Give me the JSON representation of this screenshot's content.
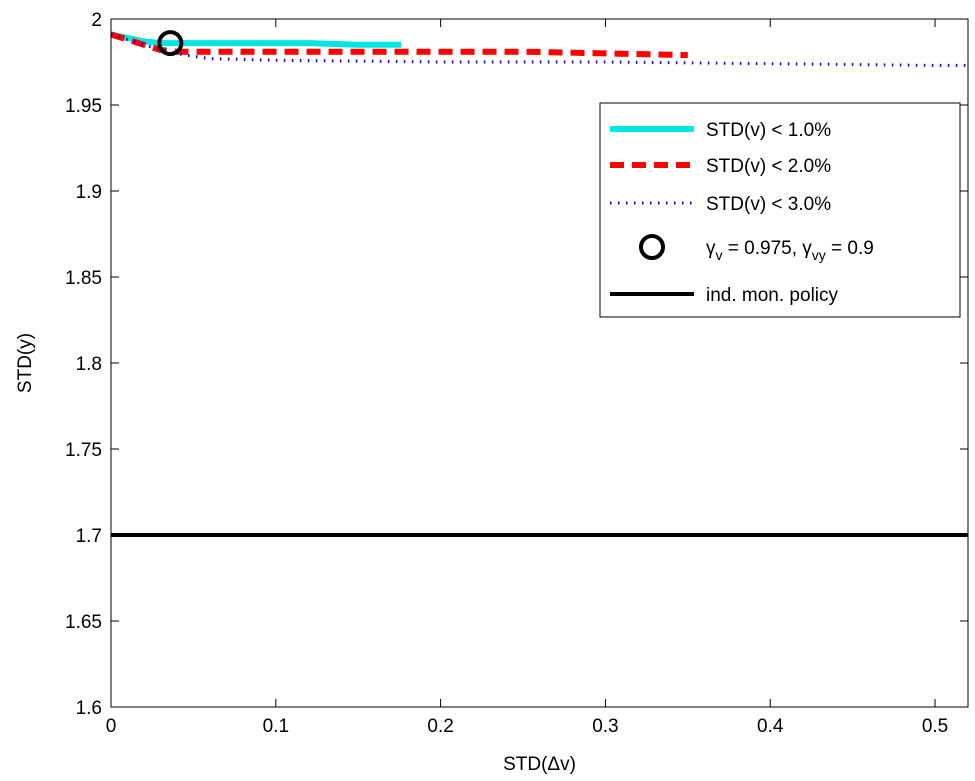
{
  "chart_data": {
    "type": "line",
    "xlabel": "STD(Δv)",
    "ylabel": "STD(y)",
    "xlim": [
      0,
      0.52
    ],
    "ylim": [
      1.6,
      2.0
    ],
    "xticks": [
      0,
      0.1,
      0.2,
      0.3,
      0.4,
      0.5
    ],
    "xtick_labels": [
      "0",
      "0.1",
      "0.2",
      "0.3",
      "0.4",
      "0.5"
    ],
    "yticks": [
      1.6,
      1.65,
      1.7,
      1.75,
      1.8,
      1.85,
      1.9,
      1.95,
      2.0
    ],
    "ytick_labels": [
      "1.6",
      "1.65",
      "1.7",
      "1.75",
      "1.8",
      "1.85",
      "1.9",
      "1.95",
      "2"
    ],
    "grid": false,
    "legend_position": "top-right",
    "series": [
      {
        "name": "STD(v) < 1.0%",
        "color": "#00e5e5",
        "style": "solid",
        "x": [
          0,
          0.01,
          0.02,
          0.03,
          0.036,
          0.05,
          0.08,
          0.12,
          0.15,
          0.176
        ],
        "y": [
          1.991,
          1.989,
          1.987,
          1.986,
          1.986,
          1.986,
          1.986,
          1.986,
          1.985,
          1.985
        ]
      },
      {
        "name": "STD(v) < 2.0%",
        "color": "#ff0000",
        "style": "dashed",
        "x": [
          0,
          0.01,
          0.02,
          0.03,
          0.04,
          0.06,
          0.1,
          0.15,
          0.2,
          0.25,
          0.3,
          0.35
        ],
        "y": [
          1.991,
          1.988,
          1.985,
          1.982,
          1.981,
          1.981,
          1.981,
          1.981,
          1.981,
          1.981,
          1.98,
          1.979
        ]
      },
      {
        "name": "STD(v) < 3.0%",
        "color": "#0000ff",
        "style": "dotted",
        "x": [
          0,
          0.01,
          0.02,
          0.03,
          0.045,
          0.06,
          0.1,
          0.2,
          0.3,
          0.4,
          0.5,
          0.52
        ],
        "y": [
          1.991,
          1.988,
          1.985,
          1.982,
          1.979,
          1.977,
          1.976,
          1.975,
          1.975,
          1.974,
          1.973,
          1.973
        ]
      },
      {
        "name": "γv = 0.975, γvy = 0.9",
        "color": "#000000",
        "style": "marker",
        "x": [
          0.036
        ],
        "y": [
          1.986
        ]
      },
      {
        "name": "ind. mon. policy",
        "color": "#000000",
        "style": "solid-thick",
        "x": [
          0,
          0.52
        ],
        "y": [
          1.7,
          1.7
        ]
      }
    ],
    "legend": {
      "entries": [
        {
          "label": "STD(v) < 1.0%",
          "key": "s1"
        },
        {
          "label": "STD(v) < 2.0%",
          "key": "s2"
        },
        {
          "label": "STD(v) < 3.0%",
          "key": "s3"
        },
        {
          "label_parts": [
            "γ",
            "v",
            " = 0.975, ",
            "γ",
            "vy",
            " = 0.9"
          ],
          "key": "marker"
        },
        {
          "label": "ind. mon. policy",
          "key": "hline"
        }
      ]
    }
  }
}
